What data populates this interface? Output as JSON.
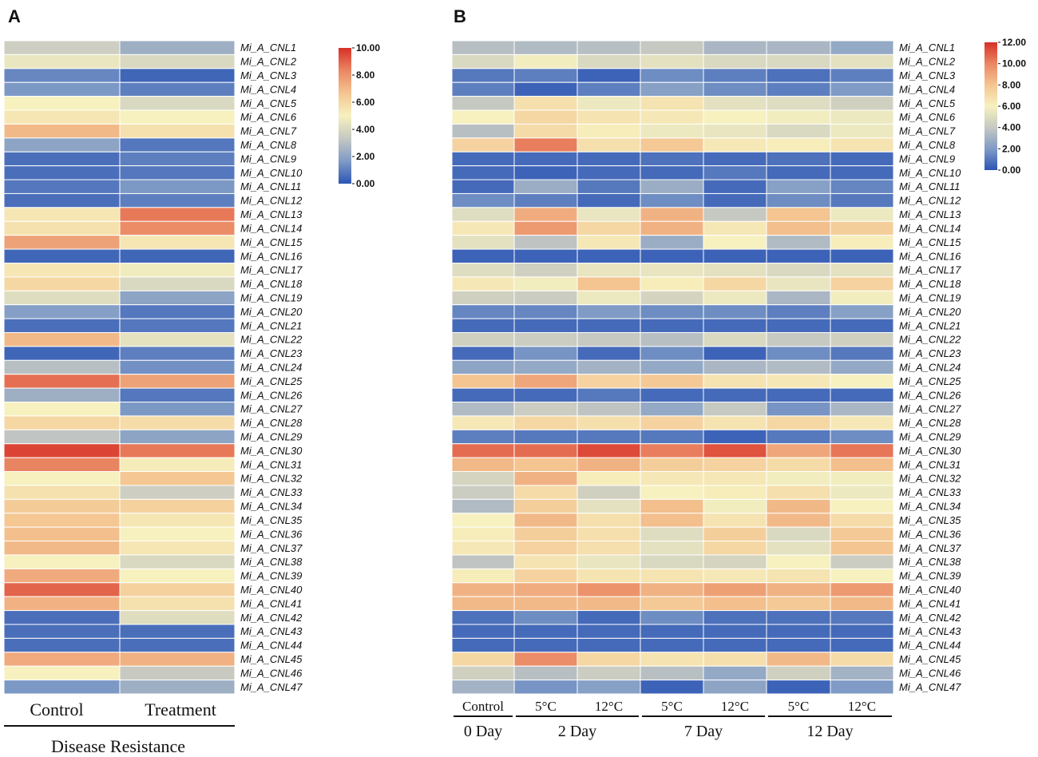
{
  "colors": {
    "scale": [
      "#2c55b4",
      "#7f9bc6",
      "#c6c8c2",
      "#f6f1bf",
      "#f4c591",
      "#ea8763",
      "#d73027"
    ]
  },
  "chart_data": [
    {
      "type": "heatmap",
      "panel": "A",
      "title": "",
      "rows": [
        "Mi_A_CNL1",
        "Mi_A_CNL2",
        "Mi_A_CNL3",
        "Mi_A_CNL4",
        "Mi_A_CNL5",
        "Mi_A_CNL6",
        "Mi_A_CNL7",
        "Mi_A_CNL8",
        "Mi_A_CNL9",
        "Mi_A_CNL10",
        "Mi_A_CNL11",
        "Mi_A_CNL12",
        "Mi_A_CNL13",
        "Mi_A_CNL14",
        "Mi_A_CNL15",
        "Mi_A_CNL16",
        "Mi_A_CNL17",
        "Mi_A_CNL18",
        "Mi_A_CNL19",
        "Mi_A_CNL20",
        "Mi_A_CNL21",
        "Mi_A_CNL22",
        "Mi_A_CNL23",
        "Mi_A_CNL24",
        "Mi_A_CNL25",
        "Mi_A_CNL26",
        "Mi_A_CNL27",
        "Mi_A_CNL28",
        "Mi_A_CNL29",
        "Mi_A_CNL30",
        "Mi_A_CNL31",
        "Mi_A_CNL32",
        "Mi_A_CNL33",
        "Mi_A_CNL34",
        "Mi_A_CNL35",
        "Mi_A_CNL36",
        "Mi_A_CNL37",
        "Mi_A_CNL38",
        "Mi_A_CNL39",
        "Mi_A_CNL40",
        "Mi_A_CNL41",
        "Mi_A_CNL42",
        "Mi_A_CNL43",
        "Mi_A_CNL44",
        "Mi_A_CNL45",
        "Mi_A_CNL46",
        "Mi_A_CNL47"
      ],
      "columns": [
        "Control",
        "Treatment"
      ],
      "group_label": "Disease Resistance",
      "colorbar": {
        "min": 0,
        "max": 10,
        "ticks": [
          "10.00",
          "8.00",
          "6.00",
          "4.00",
          "2.00",
          "0.00"
        ]
      },
      "values": [
        [
          3.6,
          2.4
        ],
        [
          4.6,
          4.0
        ],
        [
          1.2,
          0.4
        ],
        [
          1.6,
          1.0
        ],
        [
          5.0,
          4.0
        ],
        [
          5.4,
          5.0
        ],
        [
          7.0,
          5.6
        ],
        [
          2.0,
          0.8
        ],
        [
          0.6,
          1.0
        ],
        [
          0.6,
          0.8
        ],
        [
          0.8,
          1.6
        ],
        [
          0.6,
          1.0
        ],
        [
          5.4,
          8.6
        ],
        [
          5.6,
          8.2
        ],
        [
          7.6,
          5.4
        ],
        [
          0.4,
          0.4
        ],
        [
          5.4,
          4.8
        ],
        [
          6.0,
          4.0
        ],
        [
          4.2,
          2.0
        ],
        [
          1.8,
          0.8
        ],
        [
          0.6,
          0.8
        ],
        [
          7.0,
          4.4
        ],
        [
          0.4,
          1.0
        ],
        [
          3.0,
          1.4
        ],
        [
          8.8,
          7.6
        ],
        [
          2.4,
          0.8
        ],
        [
          5.0,
          1.6
        ],
        [
          6.0,
          5.8
        ],
        [
          3.2,
          2.0
        ],
        [
          9.6,
          8.6
        ],
        [
          8.4,
          5.2
        ],
        [
          5.0,
          6.6
        ],
        [
          5.6,
          3.6
        ],
        [
          6.4,
          6.2
        ],
        [
          6.6,
          5.4
        ],
        [
          6.8,
          5.0
        ],
        [
          7.0,
          5.4
        ],
        [
          5.0,
          4.0
        ],
        [
          7.4,
          5.0
        ],
        [
          9.0,
          6.2
        ],
        [
          7.2,
          5.6
        ],
        [
          0.6,
          4.2
        ],
        [
          0.6,
          0.6
        ],
        [
          0.6,
          0.6
        ],
        [
          7.4,
          7.2
        ],
        [
          5.0,
          3.4
        ],
        [
          1.6,
          2.4
        ]
      ]
    },
    {
      "type": "heatmap",
      "panel": "B",
      "title": "",
      "rows": [
        "Mi_A_CNL1",
        "Mi_A_CNL2",
        "Mi_A_CNL3",
        "Mi_A_CNL4",
        "Mi_A_CNL5",
        "Mi_A_CNL6",
        "Mi_A_CNL7",
        "Mi_A_CNL8",
        "Mi_A_CNL9",
        "Mi_A_CNL10",
        "Mi_A_CNL11",
        "Mi_A_CNL12",
        "Mi_A_CNL13",
        "Mi_A_CNL14",
        "Mi_A_CNL15",
        "Mi_A_CNL16",
        "Mi_A_CNL17",
        "Mi_A_CNL18",
        "Mi_A_CNL19",
        "Mi_A_CNL20",
        "Mi_A_CNL21",
        "Mi_A_CNL22",
        "Mi_A_CNL23",
        "Mi_A_CNL24",
        "Mi_A_CNL25",
        "Mi_A_CNL26",
        "Mi_A_CNL27",
        "Mi_A_CNL28",
        "Mi_A_CNL29",
        "Mi_A_CNL30",
        "Mi_A_CNL31",
        "Mi_A_CNL32",
        "Mi_A_CNL33",
        "Mi_A_CNL34",
        "Mi_A_CNL35",
        "Mi_A_CNL36",
        "Mi_A_CNL37",
        "Mi_A_CNL38",
        "Mi_A_CNL39",
        "Mi_A_CNL40",
        "Mi_A_CNL41",
        "Mi_A_CNL42",
        "Mi_A_CNL43",
        "Mi_A_CNL44",
        "Mi_A_CNL45",
        "Mi_A_CNL46",
        "Mi_A_CNL47"
      ],
      "columns": [
        "Control",
        "5°C",
        "12°C",
        "5°C",
        "12°C",
        "5°C",
        "12°C"
      ],
      "groups": [
        {
          "label": "0 Day",
          "span": 1
        },
        {
          "label": "2 Day",
          "span": 2
        },
        {
          "label": "7 Day",
          "span": 2
        },
        {
          "label": "12 Day",
          "span": 2
        }
      ],
      "colorbar": {
        "min": 0,
        "max": 12,
        "ticks": [
          "12.00",
          "10.00",
          "8.00",
          "6.00",
          "4.00",
          "2.00",
          "0.00"
        ]
      },
      "values": [
        [
          3.6,
          3.4,
          3.6,
          4.0,
          3.2,
          3.2,
          2.6
        ],
        [
          4.8,
          5.8,
          4.8,
          5.2,
          4.8,
          4.8,
          5.2
        ],
        [
          1.0,
          1.2,
          0.4,
          1.6,
          1.2,
          0.8,
          1.2
        ],
        [
          1.2,
          0.4,
          1.2,
          2.2,
          1.6,
          1.2,
          2.0
        ],
        [
          4.0,
          6.8,
          5.6,
          6.6,
          5.2,
          5.0,
          4.4
        ],
        [
          6.0,
          7.2,
          6.6,
          6.4,
          6.0,
          5.8,
          5.6
        ],
        [
          3.6,
          7.0,
          6.2,
          5.6,
          5.4,
          4.8,
          5.6
        ],
        [
          7.4,
          10.2,
          6.8,
          7.8,
          6.4,
          6.2,
          6.6
        ],
        [
          0.6,
          0.6,
          0.6,
          0.8,
          0.6,
          0.8,
          0.6
        ],
        [
          0.6,
          0.4,
          0.6,
          0.6,
          1.0,
          0.6,
          0.6
        ],
        [
          0.6,
          2.8,
          1.0,
          2.8,
          0.6,
          2.2,
          1.4
        ],
        [
          1.6,
          1.2,
          0.6,
          1.6,
          0.6,
          1.6,
          1.0
        ],
        [
          5.0,
          8.8,
          5.4,
          8.6,
          4.0,
          8.0,
          5.6
        ],
        [
          6.4,
          9.4,
          7.2,
          8.6,
          6.4,
          8.2,
          7.6
        ],
        [
          5.2,
          3.8,
          6.4,
          2.8,
          6.0,
          3.4,
          6.2
        ],
        [
          0.4,
          0.4,
          0.4,
          0.4,
          0.4,
          0.4,
          0.4
        ],
        [
          5.0,
          4.4,
          5.4,
          5.4,
          5.2,
          4.8,
          5.2
        ],
        [
          6.4,
          5.8,
          8.0,
          6.2,
          7.2,
          5.4,
          7.4
        ],
        [
          4.4,
          4.2,
          5.6,
          4.6,
          5.6,
          3.2,
          5.8
        ],
        [
          1.4,
          1.4,
          2.0,
          1.6,
          1.6,
          1.2,
          2.2
        ],
        [
          0.6,
          0.6,
          0.6,
          0.6,
          0.6,
          0.6,
          0.6
        ],
        [
          4.4,
          4.2,
          4.0,
          3.6,
          4.8,
          4.0,
          4.4
        ],
        [
          0.6,
          1.8,
          0.6,
          1.6,
          0.4,
          1.6,
          1.0
        ],
        [
          2.4,
          2.6,
          3.0,
          2.6,
          3.2,
          3.4,
          2.6
        ],
        [
          8.0,
          9.0,
          7.4,
          7.8,
          6.6,
          6.4,
          6.0
        ],
        [
          0.6,
          0.6,
          1.0,
          0.6,
          0.6,
          0.6,
          0.6
        ],
        [
          3.4,
          4.2,
          3.8,
          2.6,
          4.0,
          1.8,
          3.2
        ],
        [
          6.4,
          7.2,
          6.8,
          7.4,
          6.6,
          7.2,
          6.4
        ],
        [
          1.2,
          1.0,
          1.0,
          1.0,
          0.4,
          1.0,
          1.6
        ],
        [
          10.6,
          10.6,
          11.4,
          10.2,
          11.2,
          9.0,
          10.4
        ],
        [
          8.4,
          8.0,
          8.6,
          7.6,
          7.4,
          7.0,
          8.2
        ],
        [
          4.6,
          8.6,
          6.2,
          6.4,
          6.4,
          5.8,
          5.8
        ],
        [
          4.2,
          7.0,
          4.4,
          6.0,
          6.2,
          6.8,
          5.6
        ],
        [
          3.4,
          7.6,
          5.2,
          8.2,
          5.8,
          8.4,
          6.0
        ],
        [
          6.0,
          8.4,
          6.8,
          8.2,
          6.6,
          8.4,
          7.0
        ],
        [
          6.2,
          7.6,
          6.8,
          5.0,
          7.6,
          4.8,
          7.8
        ],
        [
          6.4,
          7.4,
          6.8,
          5.2,
          7.2,
          5.2,
          8.0
        ],
        [
          3.8,
          6.6,
          5.4,
          4.8,
          4.6,
          6.0,
          4.2
        ],
        [
          6.2,
          7.4,
          6.6,
          6.6,
          6.4,
          6.6,
          6.0
        ],
        [
          8.6,
          8.8,
          9.6,
          8.6,
          9.2,
          8.6,
          9.4
        ],
        [
          8.4,
          8.4,
          8.4,
          7.8,
          8.2,
          7.8,
          8.4
        ],
        [
          0.8,
          1.6,
          0.6,
          1.6,
          0.8,
          0.8,
          1.0
        ],
        [
          0.6,
          0.6,
          0.6,
          0.6,
          0.6,
          0.6,
          0.6
        ],
        [
          0.6,
          0.6,
          0.6,
          0.6,
          0.6,
          0.6,
          0.6
        ],
        [
          7.2,
          9.8,
          7.2,
          6.6,
          6.8,
          8.4,
          7.0
        ],
        [
          4.4,
          3.6,
          4.2,
          3.6,
          2.6,
          4.4,
          3.0
        ],
        [
          3.0,
          1.8,
          2.2,
          0.4,
          2.4,
          0.4,
          2.0
        ]
      ]
    }
  ]
}
